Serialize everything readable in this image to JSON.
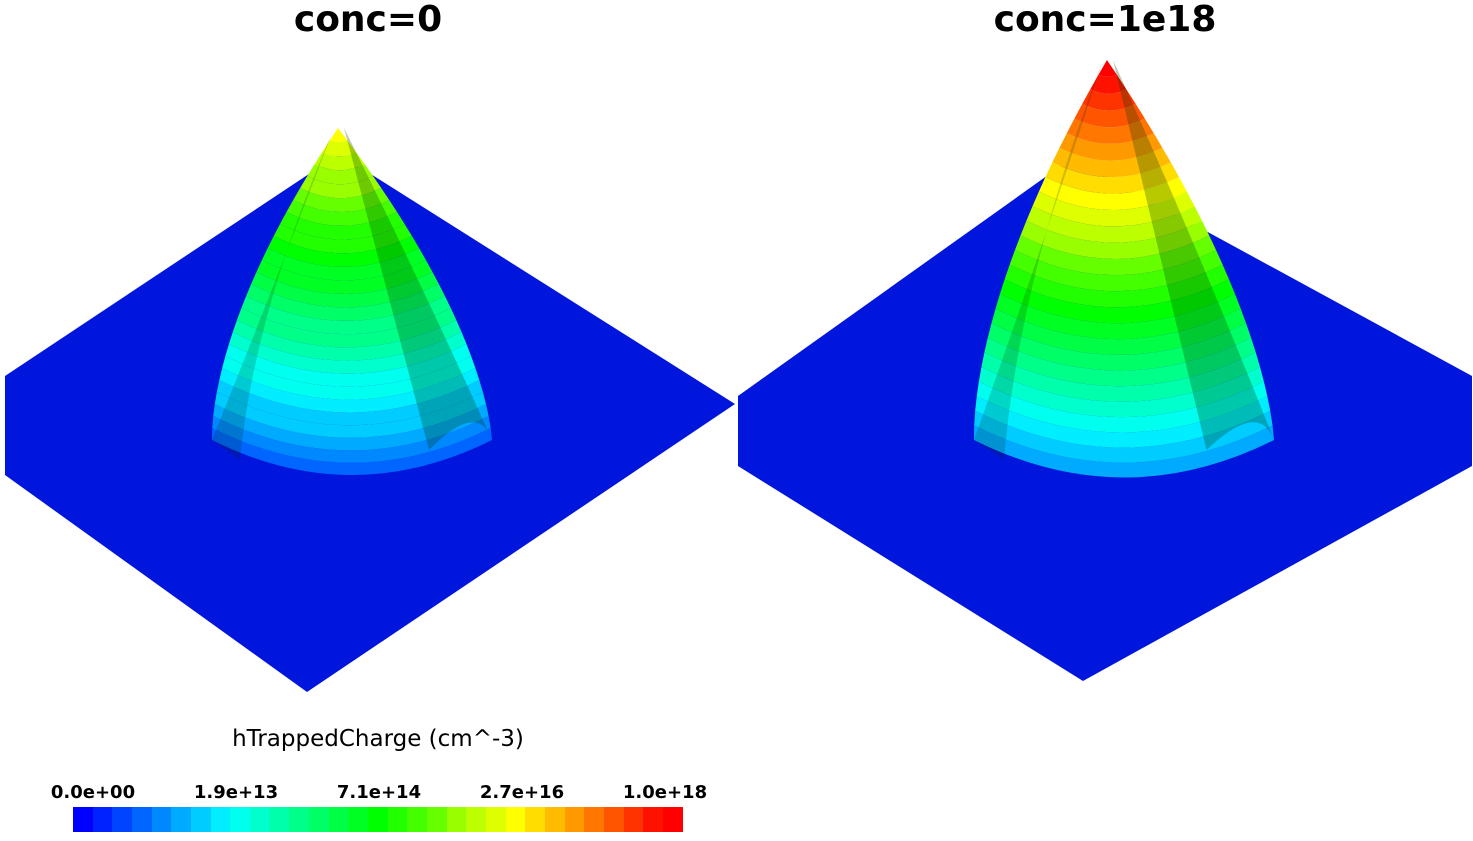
{
  "views": [
    {
      "title": "conc=0",
      "peak_level": 0.72
    },
    {
      "title": "conc=1e18",
      "peak_level": 1.0
    }
  ],
  "legend": {
    "title": "hTrappedCharge (cm^-3)",
    "tick_labels": [
      "0.0e+00",
      "1.9e+13",
      "7.1e+14",
      "2.7e+16",
      "1.0e+18"
    ],
    "colors": [
      "#0000ff",
      "#0022ff",
      "#0044ff",
      "#0066ff",
      "#0088ff",
      "#00aaff",
      "#00ccff",
      "#00eeff",
      "#00ffee",
      "#00ffcc",
      "#00ffaa",
      "#00ff88",
      "#00ff66",
      "#00ff44",
      "#00ff22",
      "#00ff00",
      "#22ff00",
      "#44ff00",
      "#66ff00",
      "#99ff00",
      "#bbff00",
      "#ddff00",
      "#ffff00",
      "#ffdd00",
      "#ffbb00",
      "#ff9900",
      "#ff7700",
      "#ff5500",
      "#ff3300",
      "#ff1100",
      "#ff0000"
    ]
  },
  "colors": {
    "plate": "#0016dd",
    "background": "#ffffff"
  }
}
